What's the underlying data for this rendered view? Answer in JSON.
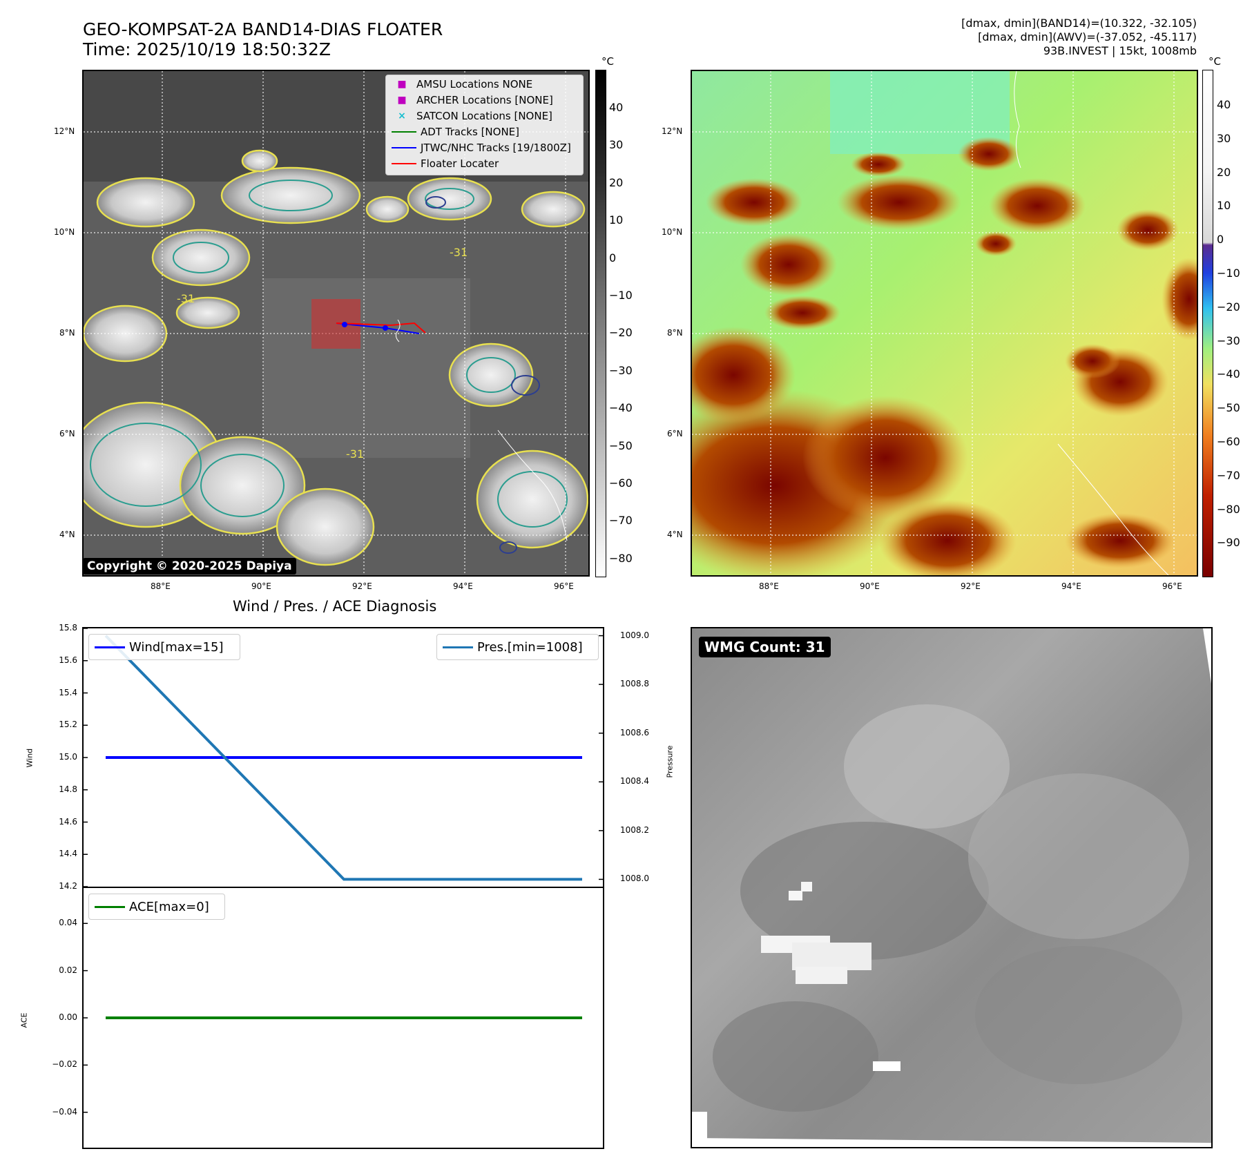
{
  "header": {
    "title_line1": "GEO-KOMPSAT-2A BAND14-DIAS FLOATER",
    "title_line2": "Time: 2025/10/19 18:50:32Z",
    "info_line1": "[dmax, dmin](BAND14)=(10.322, -32.105)",
    "info_line2": "[dmax, dmin](AWV)=(-37.052, -45.117)",
    "info_line3": "93B.INVEST | 15kt, 1008mb"
  },
  "maps": {
    "lat_ticks": [
      "12°N",
      "10°N",
      "8°N",
      "6°N",
      "4°N"
    ],
    "lon_ticks": [
      "88°E",
      "90°E",
      "92°E",
      "94°E",
      "96°E"
    ],
    "colorbar_unit": "°C",
    "left_colorbar_ticks": [
      "40",
      "30",
      "20",
      "10",
      "0",
      "−10",
      "−20",
      "−30",
      "−40",
      "−50",
      "−60",
      "−70",
      "−80"
    ],
    "right_colorbar_ticks": [
      "40",
      "30",
      "20",
      "10",
      "0",
      "−10",
      "−20",
      "−30",
      "−40",
      "−50",
      "−60",
      "−70",
      "−80",
      "−90"
    ],
    "copyright": "Copyright © 2020-2025 Dapiya",
    "contour_label": "-31",
    "legend": [
      {
        "label": "AMSU Locations NONE",
        "marker": "■",
        "color": "#bf00bf"
      },
      {
        "label": "ARCHER Locations [NONE]",
        "marker": "■",
        "color": "#bf00bf"
      },
      {
        "label": "SATCON Locations [NONE]",
        "marker": "×",
        "color": "#17becf"
      },
      {
        "label": "ADT Tracks [NONE]",
        "line": "#008000"
      },
      {
        "label": "JTWC/NHC Tracks [19/1800Z]",
        "line": "#0000ff"
      },
      {
        "label": "Floater Locater",
        "line": "#ff0000"
      }
    ]
  },
  "diag": {
    "title": "Wind / Pres. / ACE Diagnosis",
    "wind_axis_label": "Wind",
    "pressure_axis_label": "Pressure",
    "ace_axis_label": "ACE",
    "wind_ticks": [
      "15.8",
      "15.6",
      "15.4",
      "15.2",
      "15.0",
      "14.8",
      "14.6",
      "14.4",
      "14.2"
    ],
    "pressure_ticks": [
      "1009.0",
      "1008.8",
      "1008.6",
      "1008.4",
      "1008.2",
      "1008.0"
    ],
    "ace_ticks": [
      "0.04",
      "0.02",
      "0.00",
      "−0.02",
      "−0.04"
    ],
    "wind_legend": "Wind[max=15]",
    "pres_legend": "Pres.[min=1008]",
    "ace_legend": "ACE[max=0]",
    "wmg_label": "WMG Count: 31"
  },
  "chart_data": [
    {
      "type": "line",
      "title": "Wind / Pres. / ACE Diagnosis",
      "ylabel": "Wind",
      "ylim": [
        14.2,
        15.8
      ],
      "series": [
        {
          "name": "Wind[max=15]",
          "x": [
            0,
            1,
            2
          ],
          "values": [
            15.0,
            15.0,
            15.0
          ],
          "color": "#0000ff"
        }
      ]
    },
    {
      "type": "line",
      "ylabel": "Pressure",
      "ylim": [
        1007.97,
        1009.03
      ],
      "series": [
        {
          "name": "Pres.[min=1008]",
          "x": [
            0,
            1,
            2
          ],
          "values": [
            1009.0,
            1008.0,
            1008.0
          ],
          "color": "#1f77b4"
        }
      ]
    },
    {
      "type": "line",
      "ylabel": "ACE",
      "ylim": [
        -0.055,
        0.055
      ],
      "series": [
        {
          "name": "ACE[max=0]",
          "x": [
            0,
            1,
            2
          ],
          "values": [
            0.0,
            0.0,
            0.0
          ],
          "color": "#008000"
        }
      ]
    }
  ]
}
